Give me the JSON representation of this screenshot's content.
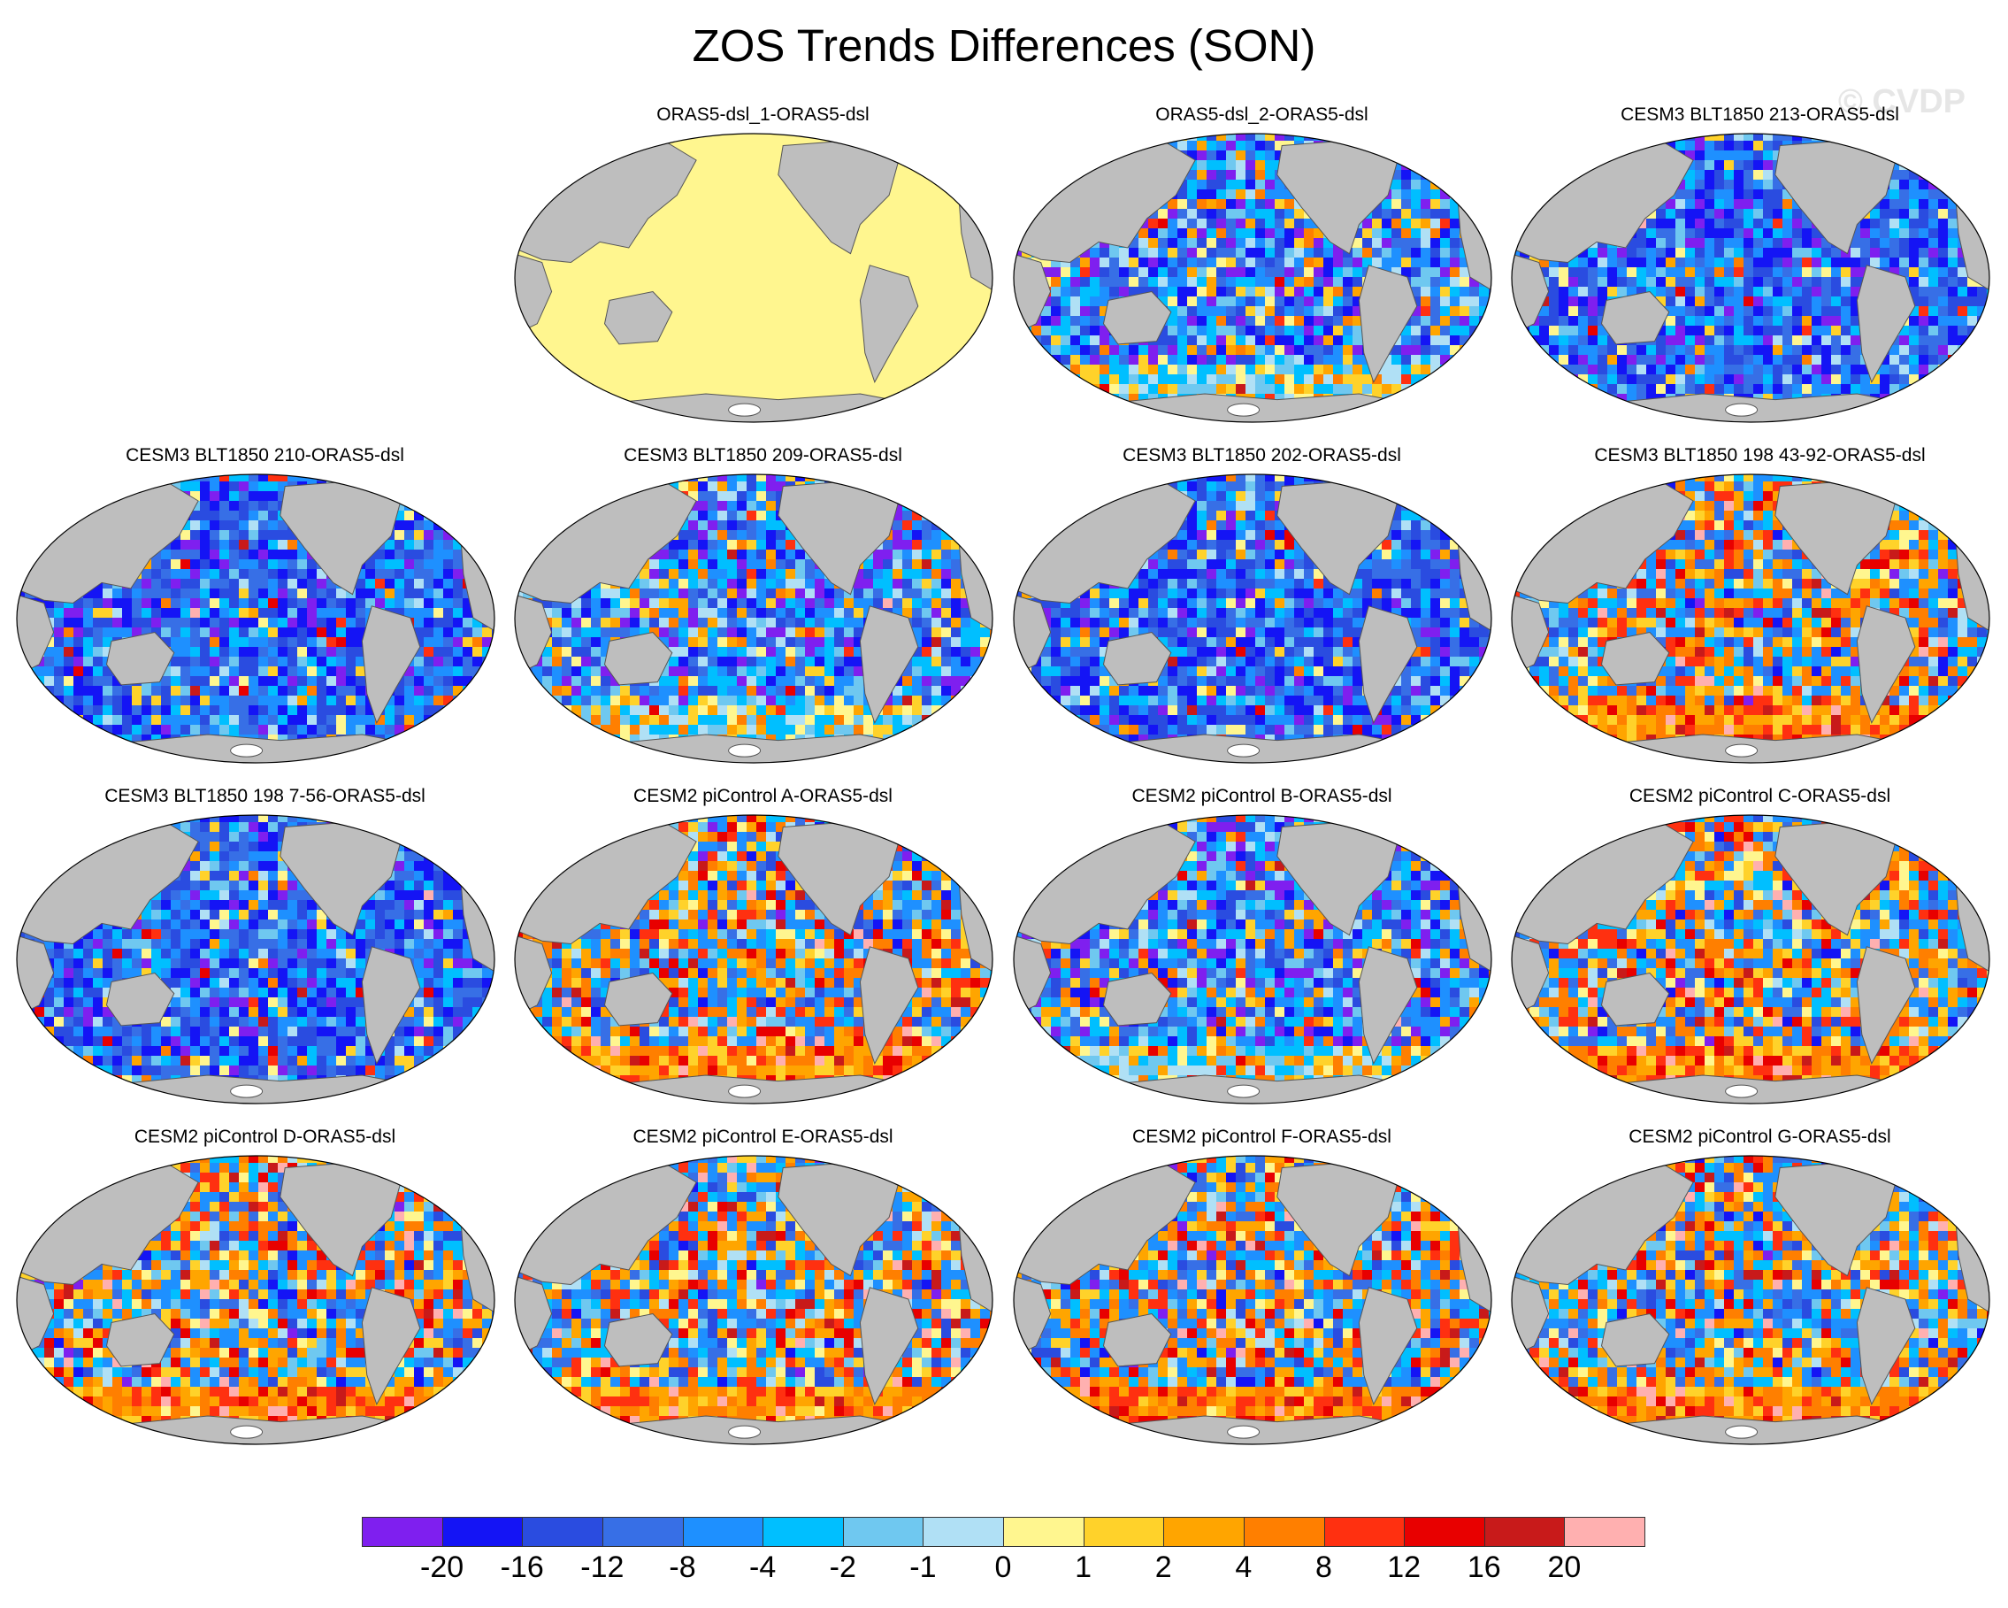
{
  "title": "ZOS Trends Differences (SON)",
  "watermark": "© CVDP",
  "panels": [
    {
      "label": "ORAS5-dsl_1-ORAS5-dsl",
      "pattern": "uniform"
    },
    {
      "label": "ORAS5-dsl_2-ORAS5-dsl",
      "pattern": "mixed"
    },
    {
      "label": "CESM3 BLT1850 213-ORAS5-dsl",
      "pattern": "negative"
    },
    {
      "label": "CESM3 BLT1850 210-ORAS5-dsl",
      "pattern": "negative"
    },
    {
      "label": "CESM3 BLT1850 209-ORAS5-dsl",
      "pattern": "mixed"
    },
    {
      "label": "CESM3 BLT1850 202-ORAS5-dsl",
      "pattern": "negative"
    },
    {
      "label": "CESM3 BLT1850 198 43-92-ORAS5-dsl",
      "pattern": "positive"
    },
    {
      "label": "CESM3 BLT1850 198 7-56-ORAS5-dsl",
      "pattern": "negative"
    },
    {
      "label": "CESM2 piControl A-ORAS5-dsl",
      "pattern": "positive"
    },
    {
      "label": "CESM2 piControl B-ORAS5-dsl",
      "pattern": "mixed"
    },
    {
      "label": "CESM2 piControl C-ORAS5-dsl",
      "pattern": "positive"
    },
    {
      "label": "CESM2 piControl D-ORAS5-dsl",
      "pattern": "positive"
    },
    {
      "label": "CESM2 piControl E-ORAS5-dsl",
      "pattern": "positive"
    },
    {
      "label": "CESM2 piControl F-ORAS5-dsl",
      "pattern": "positive"
    },
    {
      "label": "CESM2 piControl G-ORAS5-dsl",
      "pattern": "positive"
    }
  ],
  "colorbar": {
    "colors": [
      "#7f1fef",
      "#1414f5",
      "#2a4ce0",
      "#376fe6",
      "#1e90ff",
      "#00bfff",
      "#6fc8f0",
      "#b0e0f5",
      "#fff68f",
      "#ffd22a",
      "#ffa500",
      "#ff7f00",
      "#ff3010",
      "#e80000",
      "#c81a1a",
      "#ffb0b0"
    ],
    "labels": [
      "-20",
      "-16",
      "-12",
      "-8",
      "-4",
      "-2",
      "-1",
      "0",
      "1",
      "2",
      "4",
      "8",
      "12",
      "16",
      "20"
    ]
  },
  "map_colors": {
    "land": "#bebebe",
    "ocean_uniform": "#fff68f",
    "antarctica": "#ffffff",
    "coast": "#555555"
  }
}
